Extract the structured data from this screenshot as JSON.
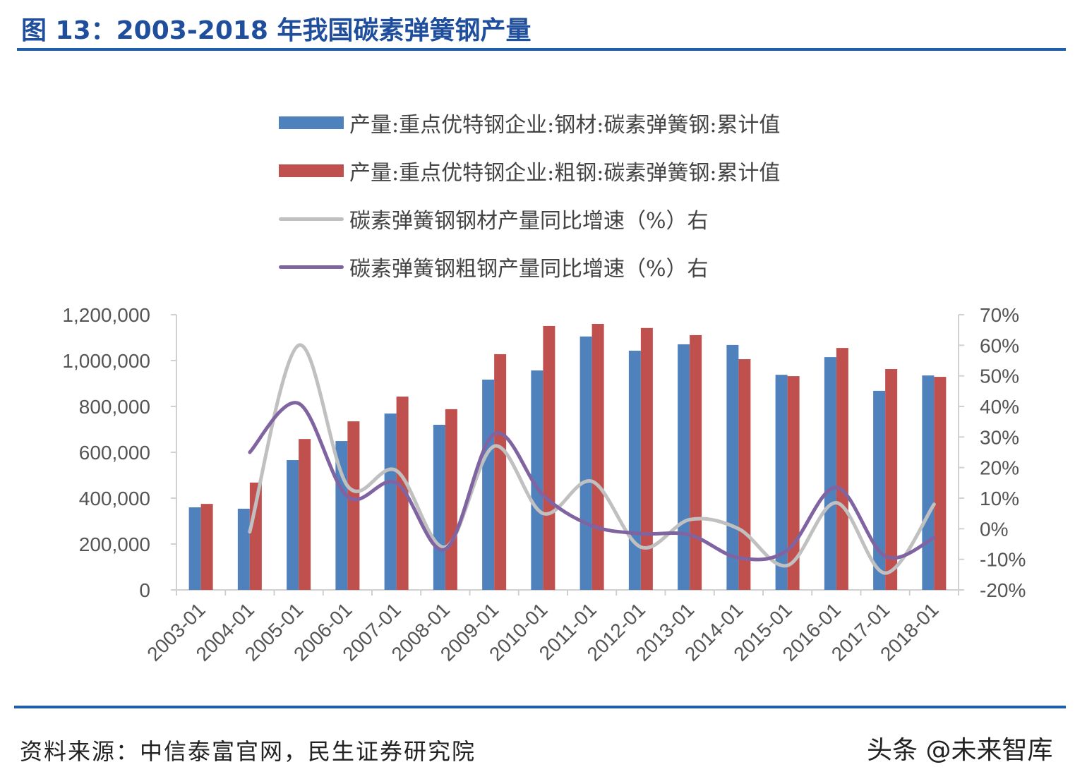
{
  "title": "图 13：2003-2018 年我国碳素弹簧钢产量",
  "source": "资料来源：中信泰富官网，民生证券研究院",
  "watermark": "头条 @未来智库",
  "chart_data": {
    "type": "bar+line",
    "categories": [
      "2003-01",
      "2004-01",
      "2005-01",
      "2006-01",
      "2007-01",
      "2008-01",
      "2009-01",
      "2010-01",
      "2011-01",
      "2012-01",
      "2013-01",
      "2014-01",
      "2015-01",
      "2016-01",
      "2017-01",
      "2018-01"
    ],
    "left_axis": {
      "ylim": [
        0,
        1200000
      ],
      "ticks": [
        "0",
        "200,000",
        "400,000",
        "600,000",
        "800,000",
        "1,000,000",
        "1,200,000"
      ]
    },
    "right_axis": {
      "ylim": [
        -20,
        70
      ],
      "ticks": [
        "-20%",
        "-10%",
        "0%",
        "10%",
        "20%",
        "30%",
        "40%",
        "50%",
        "60%",
        "70%"
      ]
    },
    "legend_placement": "top",
    "grid": false,
    "series": [
      {
        "name": "产量:重点优特钢企业:钢材:碳素弹簧钢:累计值",
        "type": "bar",
        "axis": "left",
        "color": "#4f81bd",
        "values": [
          360000,
          354000,
          566000,
          649000,
          769000,
          720000,
          917000,
          957000,
          1105000,
          1043000,
          1071000,
          1068000,
          938000,
          1015000,
          868000,
          935000
        ]
      },
      {
        "name": "产量:重点优特钢企业:粗钢:碳素弹簧钢:累计值",
        "type": "bar",
        "axis": "left",
        "color": "#c0504d",
        "values": [
          375000,
          468000,
          658000,
          735000,
          843000,
          788000,
          1028000,
          1151000,
          1160000,
          1142000,
          1111000,
          1006000,
          932000,
          1055000,
          963000,
          929000
        ]
      },
      {
        "name": "碳素弹簧钢钢材产量同比增速（%）右",
        "type": "line",
        "axis": "right",
        "color": "#c0c0c0",
        "values": [
          null,
          -1,
          60,
          14,
          19,
          -6,
          27,
          5,
          15.5,
          -6,
          3,
          0,
          -12,
          8.5,
          -14.5,
          8
        ]
      },
      {
        "name": "碳素弹簧钢粗钢产量同比增速（%）右",
        "type": "line",
        "axis": "right",
        "color": "#8064a2",
        "values": [
          null,
          25,
          41,
          10.5,
          15,
          -6.7,
          31,
          11,
          1,
          -1.6,
          -2,
          -9.5,
          -7,
          13.5,
          -9,
          -3
        ]
      }
    ]
  }
}
